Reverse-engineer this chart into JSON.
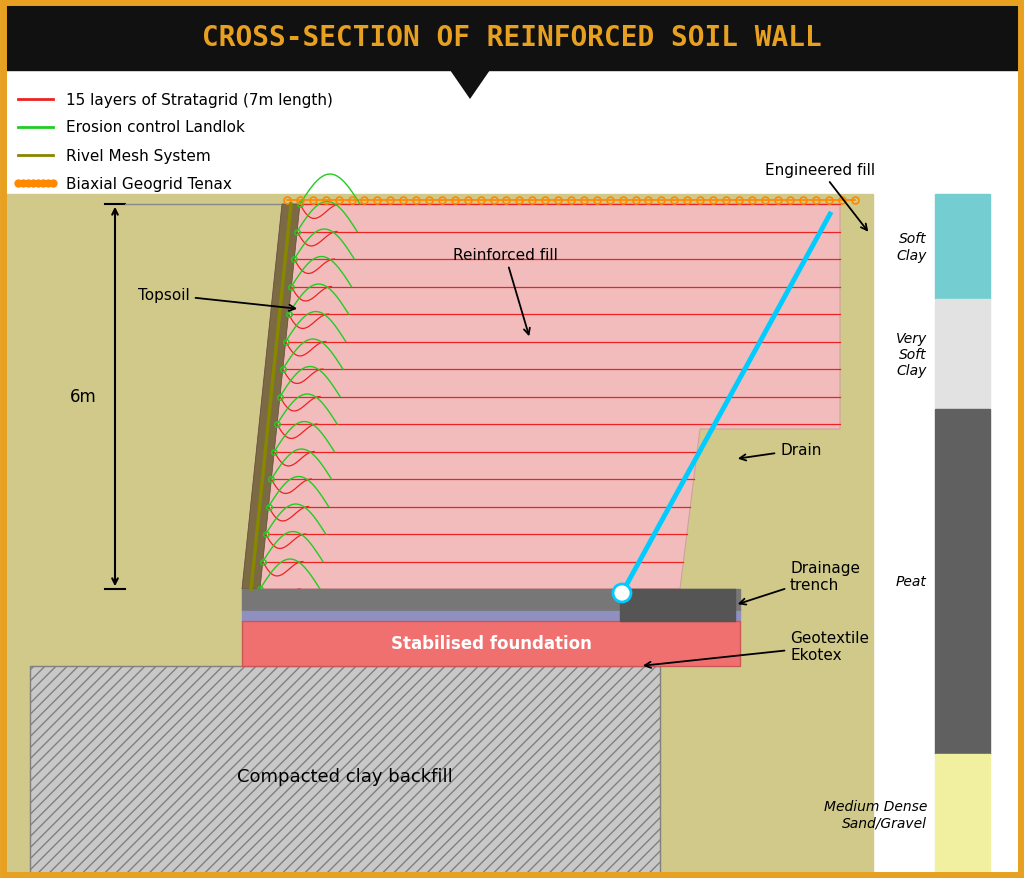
{
  "title": "CROSS-SECTION OF REINFORCED SOIL WALL",
  "title_color": "#E8A020",
  "title_bg": "#111111",
  "border_color": "#E8A020",
  "bg_color": "#FFFFFF",
  "ground_color": "#D0C98A",
  "wall_fill_color": "#F2BCBC",
  "topsoil_color": "#7B6A44",
  "stabilised_foundation_color": "#F07070",
  "stabilised_top_color": "#888888",
  "stabilised_purple_color": "#9090C0",
  "compacted_clay_color": "#BBBBBB",
  "drain_color": "#00CCFF",
  "layer_colors": {
    "soft_clay": "#74CDD0",
    "very_soft_clay": "#E2E2E2",
    "peat": "#606060",
    "sand_gravel": "#F0F0A0"
  },
  "legend_items": [
    {
      "label": "15 layers of Stratagrid (7m length)",
      "color": "#EE2222",
      "linestyle": "-",
      "marker": null
    },
    {
      "label": "Erosion control Landlok",
      "color": "#22CC22",
      "linestyle": "-",
      "marker": null
    },
    {
      "label": "Rivel Mesh System",
      "color": "#888800",
      "linestyle": "-",
      "marker": null
    },
    {
      "label": "Biaxial Geogrid Tenax",
      "color": "#FF8800",
      "linestyle": "-",
      "marker": "o"
    }
  ]
}
